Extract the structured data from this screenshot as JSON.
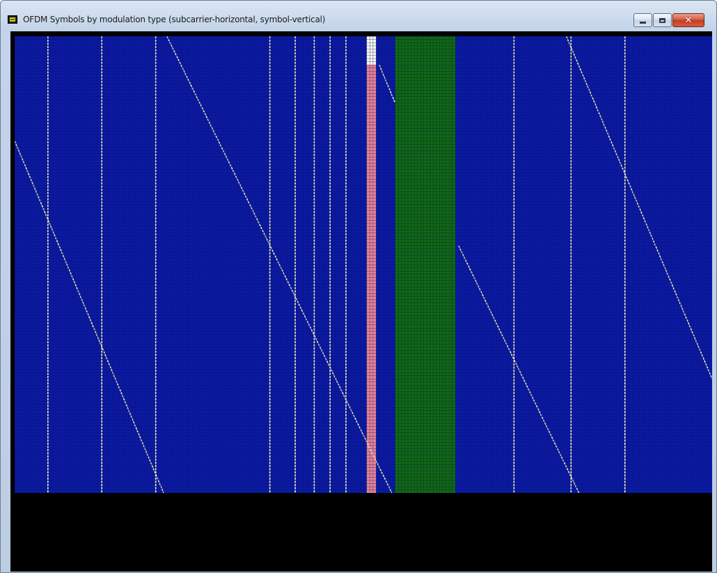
{
  "window": {
    "title": "OFDM Symbols by modulation type (subcarrier-horizontal, symbol-vertical)",
    "icon": "application-icon",
    "controls": {
      "minimize": "minimize-icon",
      "maximize": "maximize-icon",
      "close": "✕"
    }
  },
  "grid": {
    "subcarriers": 220,
    "symbols": 144,
    "colors": {
      "background": "#000000",
      "cell_default": "#0a1aa6",
      "cell_line": "#0c0f55",
      "green_band": "#0f6a10",
      "pink_band": "#e78399",
      "white_block": "#f4f6f0",
      "pilot": "#f0eeb8"
    },
    "bands": [
      {
        "name": "white-block",
        "sub_start": 111,
        "sub_end": 114,
        "sym_start": 0,
        "sym_end": 9,
        "color": "#f4f6f0"
      },
      {
        "name": "pink-band",
        "sub_start": 111,
        "sub_end": 114,
        "sym_start": 9,
        "sym_end": 144,
        "color": "#e78399"
      },
      {
        "name": "green-band",
        "sub_start": 120,
        "sub_end": 139,
        "sym_start": 0,
        "sym_end": 144,
        "color": "#0f6a10"
      }
    ],
    "pilot_columns": [
      10,
      27,
      44,
      80,
      88,
      94,
      99,
      104,
      157,
      175,
      192
    ],
    "pilot_diagonals": [
      [
        [
          0,
          33
        ],
        [
          47,
          144
        ]
      ],
      [
        [
          48,
          0
        ],
        [
          119,
          144
        ]
      ],
      [
        [
          115,
          9
        ],
        [
          120,
          21
        ]
      ],
      [
        [
          140,
          66
        ],
        [
          178,
          144
        ]
      ],
      [
        [
          174,
          0
        ],
        [
          220,
          108
        ]
      ]
    ]
  }
}
